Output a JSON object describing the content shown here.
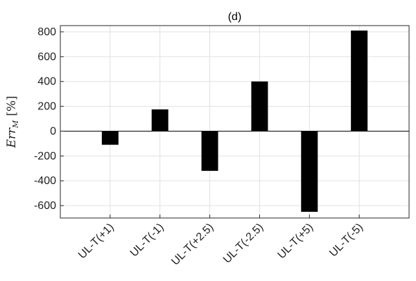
{
  "chart_data": {
    "type": "bar",
    "title": "(d)",
    "ylabel": {
      "base": "Err",
      "subscript": "M",
      "unit": "[%]"
    },
    "xlabel": "",
    "categories": [
      "UL-T(+1)",
      "UL-T(-1)",
      "UL-T(+2.5)",
      "UL-T(-2.5)",
      "UL-T(+5)",
      "UL-T(-5)"
    ],
    "values": [
      -110,
      175,
      -320,
      400,
      -650,
      810
    ],
    "ylim": [
      -700,
      850
    ],
    "yticks": [
      -600,
      -400,
      -200,
      0,
      200,
      400,
      600,
      800
    ],
    "ytick_labels": [
      "-600",
      "-400",
      "-200",
      "0",
      "200",
      "400",
      "600",
      "800"
    ],
    "grid": true,
    "legend": "none",
    "colors": {
      "bar": "#000000",
      "grid": "#e0e0e0",
      "axis": "#262626",
      "zero_line": "#000000"
    }
  }
}
